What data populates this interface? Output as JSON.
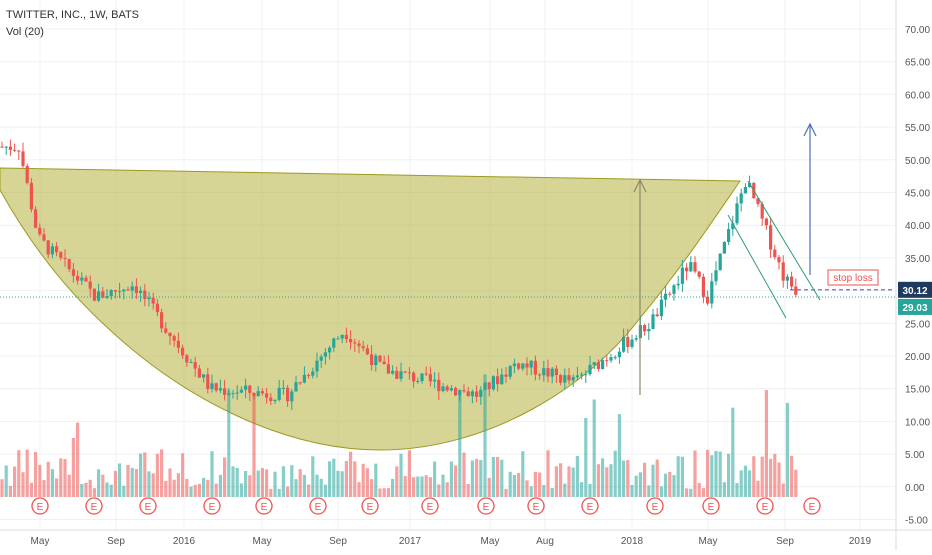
{
  "header": {
    "symbol_line": "TWITTER, INC., 1W, BATS",
    "volume_label": "Vol (20)"
  },
  "colors": {
    "up": "#26a69a",
    "down": "#ef5350",
    "cup_fill": "#b5b240",
    "arrow_gray": "#8a8a6a",
    "arrow_blue": "#4f6fb8",
    "channel": "#2e9c7a",
    "stop_loss_line": "#5b5bd6",
    "current_price": "#26a69a",
    "price_30": "#1e3a5f"
  },
  "chart_data": {
    "type": "candlestick",
    "y_axis": {
      "ticks": [
        "70.00",
        "65.00",
        "60.00",
        "55.00",
        "50.00",
        "45.00",
        "40.00",
        "35.00",
        "30.00",
        "25.00",
        "20.00",
        "15.00",
        "10.00",
        "5.00",
        "0.00",
        "-5.00"
      ],
      "price_min": 15,
      "price_max": 70
    },
    "x_axis": {
      "labels": [
        "May",
        "Sep",
        "2016",
        "May",
        "Sep",
        "2017",
        "May",
        "Aug",
        "2018",
        "May",
        "Sep",
        "2019"
      ]
    },
    "price_labels": {
      "stop_level": "30.12",
      "current": "29.03"
    },
    "annotations": {
      "stop_loss": "stop loss",
      "earnings_marker": "E"
    },
    "earnings_count": 15,
    "key_points": [
      {
        "date": "2015-04",
        "price": 52
      },
      {
        "date": "2015-05",
        "price": 38
      },
      {
        "date": "2015-08",
        "price": 29
      },
      {
        "date": "2015-10",
        "price": 31
      },
      {
        "date": "2016-02",
        "price": 15
      },
      {
        "date": "2016-06",
        "price": 14
      },
      {
        "date": "2016-09",
        "price": 24
      },
      {
        "date": "2016-11",
        "price": 18
      },
      {
        "date": "2017-04",
        "price": 14
      },
      {
        "date": "2017-06",
        "price": 19
      },
      {
        "date": "2017-09",
        "price": 16
      },
      {
        "date": "2018-01",
        "price": 25
      },
      {
        "date": "2018-03",
        "price": 34
      },
      {
        "date": "2018-04",
        "price": 29
      },
      {
        "date": "2018-06",
        "price": 47
      },
      {
        "date": "2018-08",
        "price": 32
      },
      {
        "date": "2018-09",
        "price": 29
      }
    ]
  }
}
